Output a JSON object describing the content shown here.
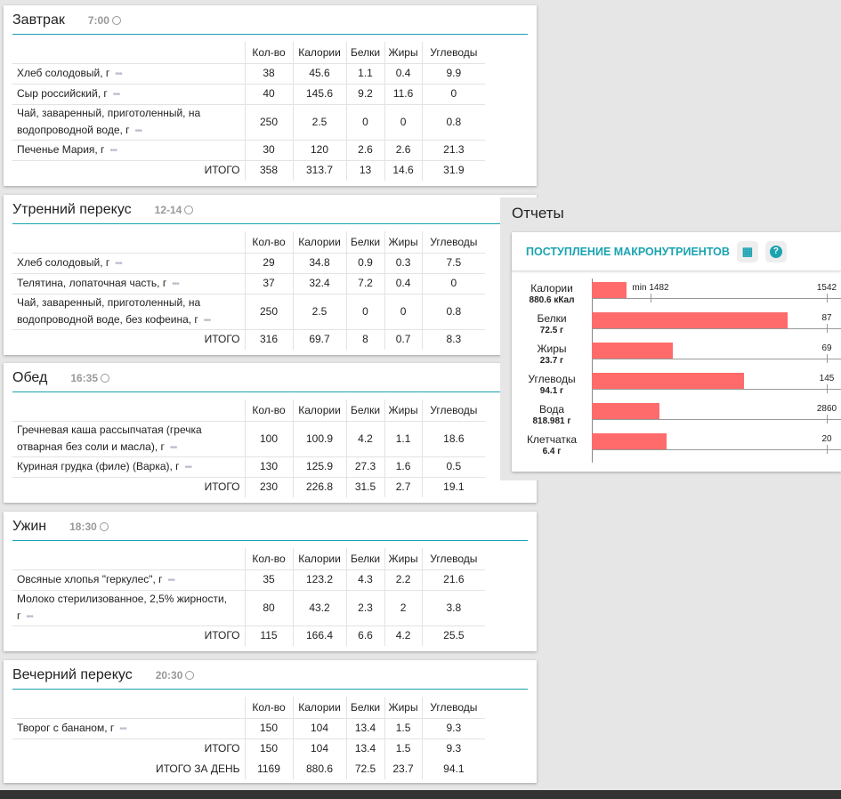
{
  "columns": [
    "Кол-во",
    "Калории",
    "Белки",
    "Жиры",
    "Углеводы"
  ],
  "meals": [
    {
      "title": "Завтрак",
      "time": "7:00",
      "items": [
        [
          "Хлеб солодовый, г",
          "38",
          "45.6",
          "1.1",
          "0.4",
          "9.9"
        ],
        [
          "Сыр российский, г",
          "40",
          "145.6",
          "9.2",
          "11.6",
          "0"
        ],
        [
          "Чай, заваренный, приготоленный, на водопроводной воде, г",
          "250",
          "2.5",
          "0",
          "0",
          "0.8"
        ],
        [
          "Печенье Мария, г",
          "30",
          "120",
          "2.6",
          "2.6",
          "21.3"
        ]
      ],
      "totals": [
        [
          "ИТОГО",
          "358",
          "313.7",
          "13",
          "14.6",
          "31.9"
        ]
      ]
    },
    {
      "title": "Утренний перекус",
      "time": "12-14",
      "items": [
        [
          "Хлеб солодовый, г",
          "29",
          "34.8",
          "0.9",
          "0.3",
          "7.5"
        ],
        [
          "Телятина, лопаточная часть, г",
          "37",
          "32.4",
          "7.2",
          "0.4",
          "0"
        ],
        [
          "Чай, заваренный, приготоленный, на водопроводной воде, без кофеина, г",
          "250",
          "2.5",
          "0",
          "0",
          "0.8"
        ]
      ],
      "totals": [
        [
          "ИТОГО",
          "316",
          "69.7",
          "8",
          "0.7",
          "8.3"
        ]
      ]
    },
    {
      "title": "Обед",
      "time": "16:35",
      "items": [
        [
          "Гречневая каша рассыпчатая (гречка отварная без соли и масла), г",
          "100",
          "100.9",
          "4.2",
          "1.1",
          "18.6"
        ],
        [
          "Куриная грудка (филе) (Варка), г",
          "130",
          "125.9",
          "27.3",
          "1.6",
          "0.5"
        ]
      ],
      "totals": [
        [
          "ИТОГО",
          "230",
          "226.8",
          "31.5",
          "2.7",
          "19.1"
        ]
      ]
    },
    {
      "title": "Ужин",
      "time": "18:30",
      "items": [
        [
          "Овсяные хлопья \"геркулес\", г",
          "35",
          "123.2",
          "4.3",
          "2.2",
          "21.6"
        ],
        [
          "Молоко стерилизованное, 2,5% жирности, г",
          "80",
          "43.2",
          "2.3",
          "2",
          "3.8"
        ]
      ],
      "totals": [
        [
          "ИТОГО",
          "115",
          "166.4",
          "6.6",
          "4.2",
          "25.5"
        ]
      ]
    },
    {
      "title": "Вечерний перекус",
      "time": "20:30",
      "items": [
        [
          "Творог с бананом, г",
          "150",
          "104",
          "13.4",
          "1.5",
          "9.3"
        ]
      ],
      "totals": [
        [
          "ИТОГО",
          "150",
          "104",
          "13.4",
          "1.5",
          "9.3"
        ],
        [
          "ИТОГО ЗА ДЕНЬ",
          "1169",
          "880.6",
          "72.5",
          "23.7",
          "94.1"
        ]
      ]
    }
  ],
  "more_icon": "•••",
  "reports": {
    "heading": "Отчеты",
    "title": "ПОСТУПЛЕНИЕ МАКРОНУТРИЕНТОВ",
    "calendar_icon": "▦",
    "help_icon": "?",
    "rows": [
      {
        "name": "Калории",
        "value": "880.6 кКал",
        "fill": 0.148,
        "min_label": "min 1482",
        "min_pos": 0.25,
        "target": "1542"
      },
      {
        "name": "Белки",
        "value": "72.5 г",
        "fill": 0.833,
        "target": "87"
      },
      {
        "name": "Жиры",
        "value": "23.7 г",
        "fill": 0.343,
        "target": "69"
      },
      {
        "name": "Углеводы",
        "value": "94.1 г",
        "fill": 0.649,
        "target": "145"
      },
      {
        "name": "Вода",
        "value": "818.981 г",
        "fill": 0.286,
        "target": "2860"
      },
      {
        "name": "Клетчатка",
        "value": "6.4 г",
        "fill": 0.32,
        "target": "20"
      }
    ],
    "bar_color": "#ff6b6b"
  }
}
